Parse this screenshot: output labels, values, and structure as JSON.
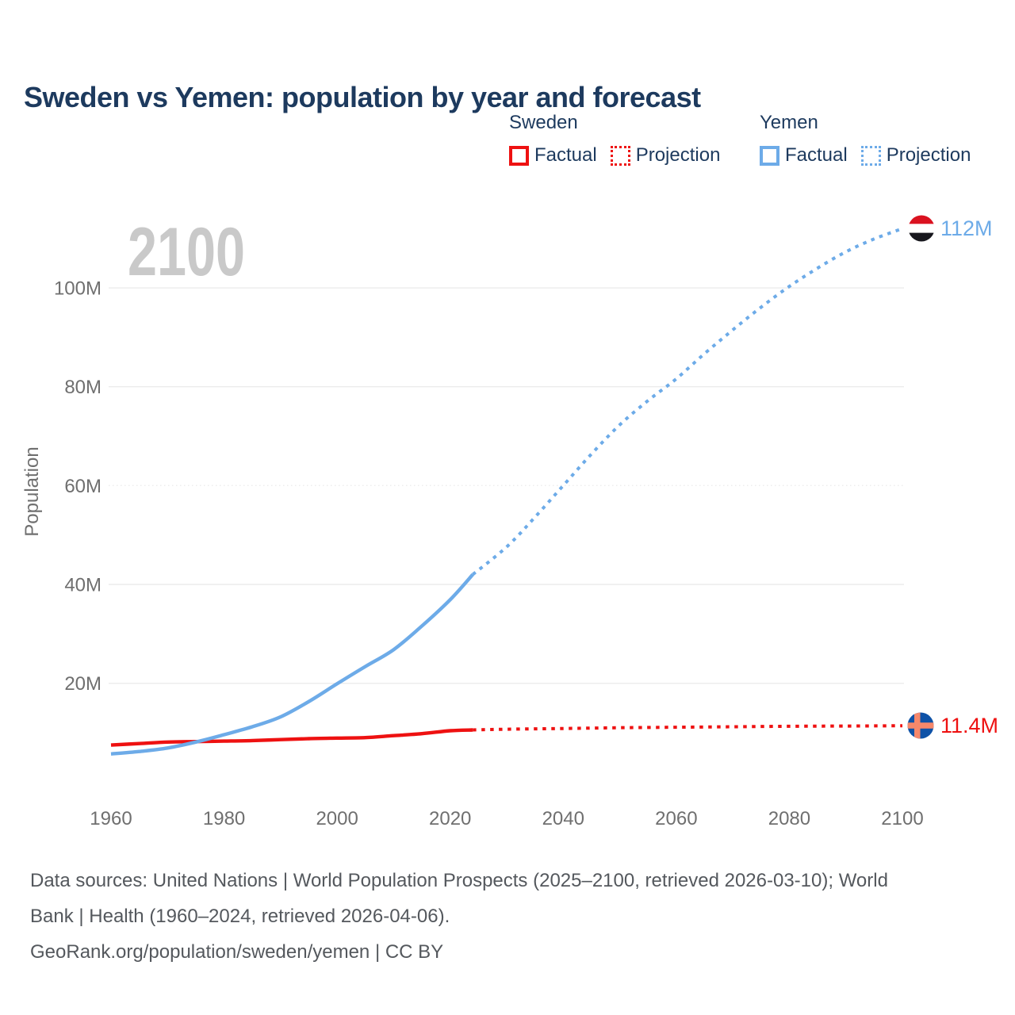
{
  "header": {
    "title": "Sweden vs Yemen: population by year and forecast"
  },
  "watermark": "2100",
  "legend": {
    "groups": [
      {
        "name": "Sweden",
        "items": [
          {
            "label": "Factual",
            "style": "solid"
          },
          {
            "label": "Projection",
            "style": "dotted"
          }
        ]
      },
      {
        "name": "Yemen",
        "items": [
          {
            "label": "Factual",
            "style": "solid"
          },
          {
            "label": "Projection",
            "style": "dotted"
          }
        ]
      }
    ]
  },
  "end_labels": {
    "yemen": "112M",
    "sweden": "11.4M"
  },
  "footer": {
    "lines": [
      "Data sources: United Nations | World Population Prospects (2025–2100, retrieved 2026-03-10); World",
      "Bank | Health (1960–2024, retrieved 2026-04-06).",
      "GeoRank.org/population/sweden/yemen | CC BY"
    ]
  },
  "colors": {
    "sweden": "#ee1111",
    "yemen": "#6dabe8",
    "navy": "#1d3a5e",
    "tick": "#6f6f6f",
    "grid": "#ececec",
    "watermark": "#c9c9c9",
    "footer": "#54585d",
    "yemen_flag_red": "#da1220",
    "yemen_flag_white": "#ffffff",
    "yemen_flag_black": "#17171d",
    "sweden_flag_field": "#0e52a7",
    "sweden_flag_cross": "#f6886b"
  },
  "chart_data": {
    "type": "line",
    "title": "Sweden vs Yemen: population by year and forecast",
    "xlabel": "",
    "ylabel": "Population",
    "xlim": [
      1960,
      2100
    ],
    "ylim": [
      0,
      116
    ],
    "grid": true,
    "legend_position": "top-right",
    "unit": "millions",
    "x_ticks": [
      {
        "value": 1960,
        "label": "1960"
      },
      {
        "value": 1980,
        "label": "1980"
      },
      {
        "value": 2000,
        "label": "2000"
      },
      {
        "value": 2020,
        "label": "2020"
      },
      {
        "value": 2040,
        "label": "2040"
      },
      {
        "value": 2060,
        "label": "2060"
      },
      {
        "value": 2080,
        "label": "2080"
      },
      {
        "value": 2100,
        "label": "2100"
      }
    ],
    "y_ticks": [
      {
        "value": 100,
        "label": "100M"
      },
      {
        "value": 80,
        "label": "80M"
      },
      {
        "value": 60,
        "label": "60M"
      },
      {
        "value": 40,
        "label": "40M"
      },
      {
        "value": 20,
        "label": "20M"
      }
    ],
    "series": [
      {
        "name": "Sweden factual",
        "country": "Sweden",
        "kind": "factual",
        "color_key": "sweden",
        "dash": "solid",
        "points": [
          [
            1960,
            7.5
          ],
          [
            1965,
            7.8
          ],
          [
            1970,
            8.1
          ],
          [
            1975,
            8.2
          ],
          [
            1980,
            8.3
          ],
          [
            1985,
            8.4
          ],
          [
            1990,
            8.6
          ],
          [
            1995,
            8.8
          ],
          [
            2000,
            8.9
          ],
          [
            2005,
            9.0
          ],
          [
            2010,
            9.4
          ],
          [
            2015,
            9.8
          ],
          [
            2020,
            10.4
          ],
          [
            2024,
            10.55
          ]
        ]
      },
      {
        "name": "Sweden projection",
        "country": "Sweden",
        "kind": "projection",
        "color_key": "sweden",
        "dash": "dotted",
        "points": [
          [
            2024,
            10.55
          ],
          [
            2030,
            10.7
          ],
          [
            2040,
            10.85
          ],
          [
            2050,
            11.0
          ],
          [
            2060,
            11.1
          ],
          [
            2070,
            11.2
          ],
          [
            2080,
            11.3
          ],
          [
            2090,
            11.35
          ],
          [
            2100,
            11.4
          ]
        ]
      },
      {
        "name": "Yemen factual",
        "country": "Yemen",
        "kind": "factual",
        "color_key": "yemen",
        "dash": "solid",
        "points": [
          [
            1960,
            5.7
          ],
          [
            1965,
            6.2
          ],
          [
            1970,
            6.9
          ],
          [
            1975,
            8.1
          ],
          [
            1980,
            9.6
          ],
          [
            1985,
            11.2
          ],
          [
            1990,
            13.2
          ],
          [
            1995,
            16.3
          ],
          [
            2000,
            19.9
          ],
          [
            2005,
            23.4
          ],
          [
            2010,
            26.8
          ],
          [
            2015,
            31.6
          ],
          [
            2020,
            36.9
          ],
          [
            2024,
            42.0
          ]
        ]
      },
      {
        "name": "Yemen projection",
        "country": "Yemen",
        "kind": "projection",
        "color_key": "yemen",
        "dash": "dotted",
        "points": [
          [
            2024,
            42.0
          ],
          [
            2030,
            47.6
          ],
          [
            2035,
            53.6
          ],
          [
            2040,
            60.0
          ],
          [
            2045,
            66.4
          ],
          [
            2050,
            72.3
          ],
          [
            2055,
            77.2
          ],
          [
            2060,
            81.6
          ],
          [
            2065,
            86.7
          ],
          [
            2070,
            91.5
          ],
          [
            2075,
            96.1
          ],
          [
            2080,
            100.3
          ],
          [
            2085,
            104.0
          ],
          [
            2090,
            107.3
          ],
          [
            2095,
            109.9
          ],
          [
            2100,
            112.0
          ]
        ]
      }
    ],
    "end_values": {
      "Yemen": 112,
      "Sweden": 11.4
    }
  }
}
